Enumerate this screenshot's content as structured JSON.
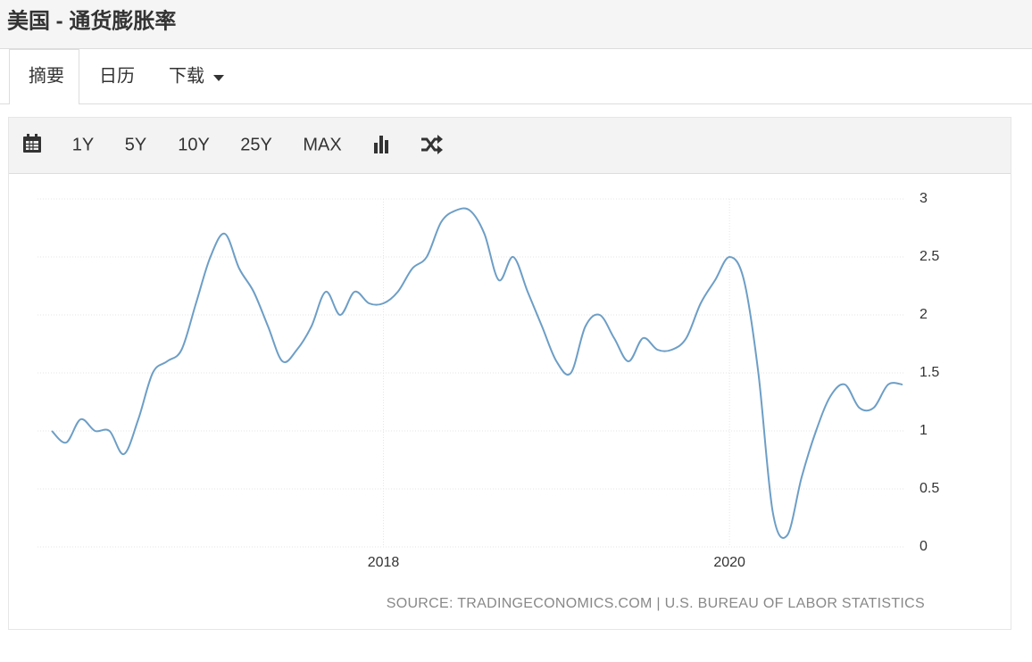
{
  "header": {
    "title": "美国 - 通货膨胀率"
  },
  "tabs": [
    "摘要",
    "日历",
    "下载"
  ],
  "toolbar": {
    "ranges": [
      "1Y",
      "5Y",
      "10Y",
      "25Y",
      "MAX"
    ]
  },
  "chart_data": {
    "type": "line",
    "categories": [
      null,
      null,
      null,
      null,
      null,
      null,
      null,
      null,
      null,
      null,
      null,
      null,
      null,
      null,
      null,
      null,
      null,
      null,
      null,
      null,
      null,
      null,
      null,
      "2018",
      null,
      null,
      null,
      null,
      null,
      null,
      null,
      null,
      null,
      null,
      null,
      null,
      null,
      null,
      null,
      null,
      null,
      null,
      null,
      null,
      null,
      null,
      null,
      "2020",
      null,
      null,
      null,
      null,
      null,
      null,
      null,
      null,
      null,
      null,
      null,
      null
    ],
    "values": [
      1.0,
      0.9,
      1.1,
      1.0,
      1.0,
      0.8,
      1.1,
      1.5,
      1.6,
      1.7,
      2.1,
      2.5,
      2.7,
      2.4,
      2.2,
      1.9,
      1.6,
      1.7,
      1.9,
      2.2,
      2.0,
      2.2,
      2.1,
      2.1,
      2.2,
      2.4,
      2.5,
      2.8,
      2.9,
      2.9,
      2.7,
      2.3,
      2.5,
      2.2,
      1.9,
      1.6,
      1.5,
      1.9,
      2.0,
      1.8,
      1.6,
      1.8,
      1.7,
      1.7,
      1.8,
      2.1,
      2.3,
      2.5,
      2.3,
      1.5,
      0.3,
      0.1,
      0.6,
      1.0,
      1.3,
      1.4,
      1.2,
      1.2,
      1.4,
      1.4
    ],
    "color": "#6d9ec6",
    "ylim": [
      0,
      3
    ],
    "yticks": [
      0,
      0.5,
      1,
      1.5,
      2,
      2.5,
      3
    ],
    "grid": true,
    "source": "SOURCE: TRADINGECONOMICS.COM | U.S. BUREAU OF LABOR STATISTICS"
  }
}
